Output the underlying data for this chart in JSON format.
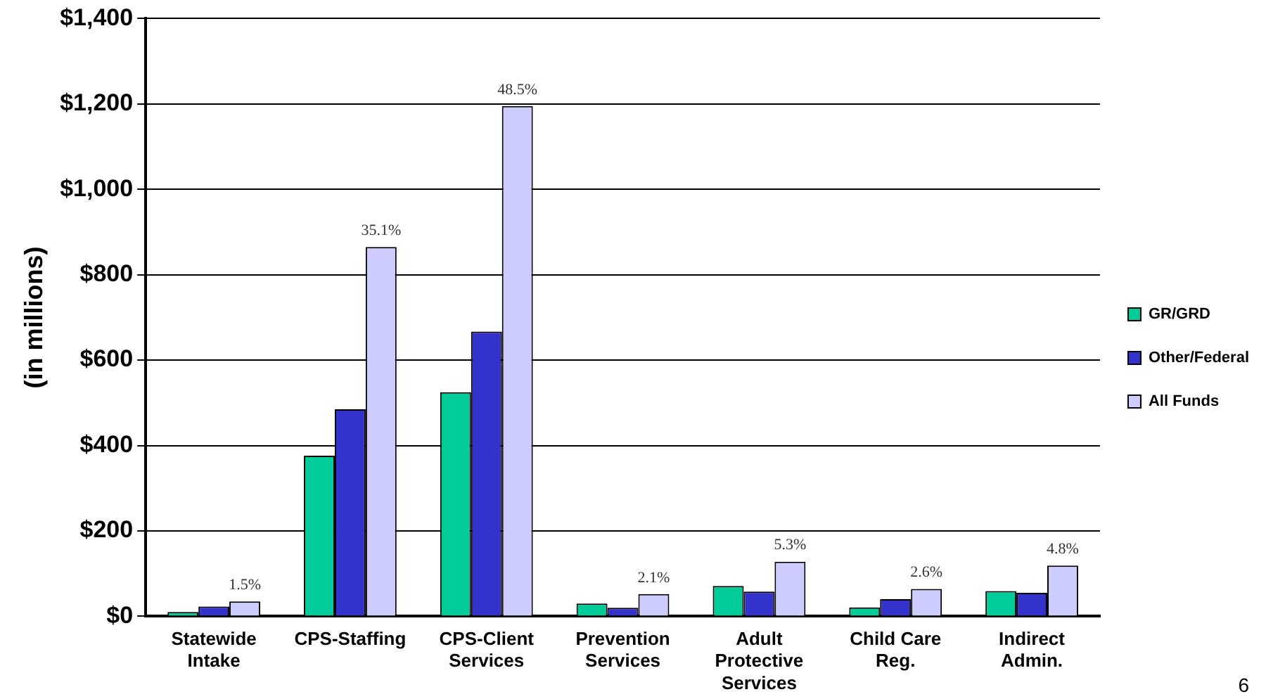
{
  "chart_data": {
    "type": "bar",
    "ylabel": "(in millions)",
    "categories": [
      "Statewide Intake",
      "CPS-Staffing",
      "CPS-Client Services",
      "Prevention Services",
      "Adult Protective Services",
      "Child Care Reg.",
      "Indirect Admin."
    ],
    "series": [
      {
        "name": "GR/GRD",
        "color": "#00cc99",
        "values": [
          10,
          376,
          525,
          30,
          71,
          21,
          59
        ]
      },
      {
        "name": "Other/Federal",
        "color": "#3333cc",
        "values": [
          23,
          485,
          667,
          20,
          58,
          40,
          55
        ]
      },
      {
        "name": "All Funds",
        "color": "#ccccff",
        "values": [
          35,
          865,
          1195,
          52,
          128,
          64,
          119
        ]
      }
    ],
    "ylim": [
      0,
      1400
    ],
    "yticks": [
      {
        "value": 0,
        "label": "$0"
      },
      {
        "value": 200,
        "label": "$200"
      },
      {
        "value": 400,
        "label": "$400"
      },
      {
        "value": 600,
        "label": "$600"
      },
      {
        "value": 800,
        "label": "$800"
      },
      {
        "value": 1000,
        "label": "$1,000"
      },
      {
        "value": 1200,
        "label": "$1,200"
      },
      {
        "value": 1400,
        "label": "$1,400"
      }
    ],
    "grid": "y",
    "legend": "right",
    "annotations": [
      "1.5%",
      "35.1%",
      "48.5%",
      "2.1%",
      "5.3%",
      "2.6%",
      "4.8%",
      "6"
    ]
  }
}
